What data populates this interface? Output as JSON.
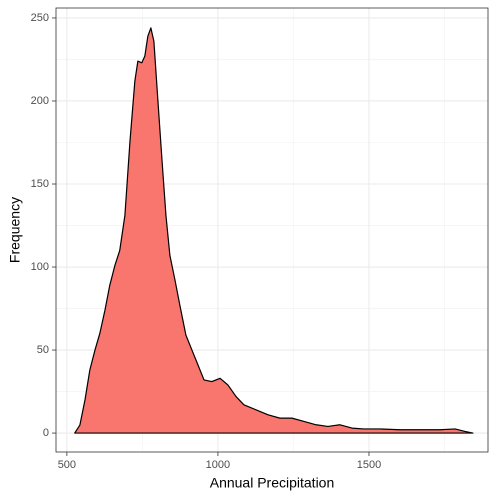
{
  "chart_data": {
    "type": "area",
    "x_label": "Annual Precipitation",
    "y_label": "Frequency",
    "x": [
      526,
      543,
      560,
      576,
      593,
      609,
      626,
      642,
      659,
      675,
      692,
      709,
      725,
      735,
      748,
      758,
      768,
      778,
      788,
      801,
      815,
      828,
      841,
      858,
      874,
      894,
      914,
      934,
      954,
      980,
      1007,
      1033,
      1060,
      1086,
      1126,
      1166,
      1205,
      1245,
      1285,
      1325,
      1364,
      1404,
      1444,
      1483,
      1536,
      1603,
      1669,
      1735,
      1785,
      1818,
      1844
    ],
    "values": [
      0,
      4.8,
      20,
      38,
      50,
      60,
      74,
      89,
      101,
      110,
      131,
      176,
      212,
      224,
      223,
      227,
      239,
      244,
      236,
      201,
      164,
      131,
      107,
      92,
      77,
      59,
      50,
      41,
      32,
      31,
      33,
      29,
      22,
      17,
      14,
      11,
      9,
      9,
      7,
      5,
      4,
      5,
      3,
      2.5,
      2.5,
      2,
      2,
      2,
      2.5,
      1,
      0
    ],
    "color": "#F8766D",
    "xlim": [
      464,
      1894
    ],
    "ylim": [
      -11.4,
      256
    ],
    "xticks": [
      500,
      1000,
      1500
    ],
    "yticks": [
      0,
      50,
      100,
      150,
      200,
      250
    ],
    "xticks_minor": [
      750,
      1250,
      1750
    ],
    "yticks_minor": [
      25,
      75,
      125,
      175,
      225
    ],
    "grid": true
  }
}
